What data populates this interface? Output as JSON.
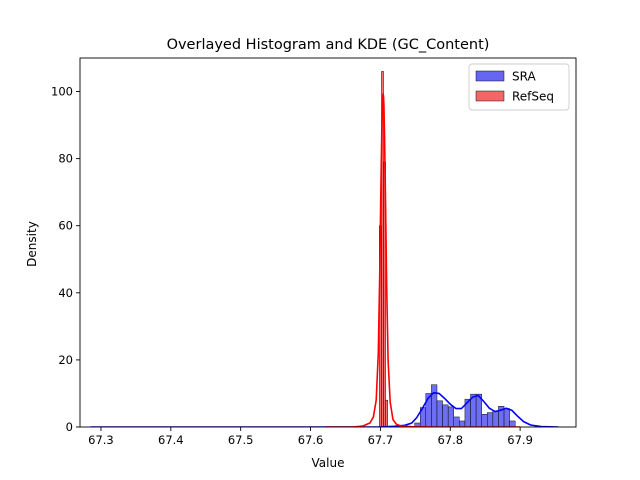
{
  "chart_data": {
    "type": "histogram",
    "title": "Overlayed Histogram and KDE (GC_Content)",
    "xlabel": "Value",
    "ylabel": "Density",
    "xlim": [
      67.27,
      67.98
    ],
    "ylim": [
      0,
      110
    ],
    "xticks": [
      "67.3",
      "67.4",
      "67.5",
      "67.6",
      "67.7",
      "67.8",
      "67.9"
    ],
    "yticks": [
      "0",
      "20",
      "40",
      "60",
      "80",
      "100"
    ],
    "grid": false,
    "legend_position": "top-right",
    "series": [
      {
        "name": "SRA",
        "color": "#0000ff",
        "fill": "#6666f2",
        "bins": [
          {
            "x0": 67.749,
            "x1": 67.757,
            "y": 1.2
          },
          {
            "x0": 67.757,
            "x1": 67.765,
            "y": 5.8
          },
          {
            "x0": 67.765,
            "x1": 67.773,
            "y": 10.0
          },
          {
            "x0": 67.773,
            "x1": 67.781,
            "y": 12.6
          },
          {
            "x0": 67.781,
            "x1": 67.789,
            "y": 7.8
          },
          {
            "x0": 67.789,
            "x1": 67.797,
            "y": 6.6
          },
          {
            "x0": 67.797,
            "x1": 67.805,
            "y": 6.0
          },
          {
            "x0": 67.805,
            "x1": 67.813,
            "y": 3.0
          },
          {
            "x0": 67.813,
            "x1": 67.821,
            "y": 1.8
          },
          {
            "x0": 67.821,
            "x1": 67.829,
            "y": 8.3
          },
          {
            "x0": 67.829,
            "x1": 67.837,
            "y": 9.8
          },
          {
            "x0": 67.837,
            "x1": 67.845,
            "y": 9.8
          },
          {
            "x0": 67.845,
            "x1": 67.853,
            "y": 3.8
          },
          {
            "x0": 67.853,
            "x1": 67.861,
            "y": 4.3
          },
          {
            "x0": 67.861,
            "x1": 67.869,
            "y": 4.8
          },
          {
            "x0": 67.869,
            "x1": 67.877,
            "y": 6.2
          },
          {
            "x0": 67.877,
            "x1": 67.885,
            "y": 5.5
          },
          {
            "x0": 67.885,
            "x1": 67.893,
            "y": 1.8
          }
        ],
        "kde_x": [
          67.285,
          67.6,
          67.7,
          67.72,
          67.735,
          67.745,
          67.752,
          67.76,
          67.768,
          67.776,
          67.784,
          67.792,
          67.8,
          67.808,
          67.816,
          67.824,
          67.832,
          67.84,
          67.848,
          67.856,
          67.864,
          67.872,
          67.88,
          67.888,
          67.896,
          67.905,
          67.915,
          67.93,
          67.955
        ],
        "kde_y": [
          0,
          0,
          0,
          0.2,
          0.5,
          1.2,
          2.8,
          5.5,
          8.5,
          10.2,
          10.0,
          8.5,
          6.8,
          5.5,
          5.5,
          7.2,
          8.9,
          9.4,
          7.6,
          5.6,
          4.6,
          5.0,
          5.6,
          5.0,
          3.3,
          1.6,
          0.6,
          0.15,
          0
        ]
      },
      {
        "name": "RefSeq",
        "color": "#ff0000",
        "fill": "#f26666",
        "bins": [
          {
            "x0": 67.6985,
            "x1": 67.7015,
            "y": 60.0
          },
          {
            "x0": 67.7015,
            "x1": 67.7045,
            "y": 106.0
          },
          {
            "x0": 67.7045,
            "x1": 67.7075,
            "y": 79.0
          },
          {
            "x0": 67.7075,
            "x1": 67.7105,
            "y": 8.0
          }
        ],
        "kde_x": [
          67.62,
          67.66,
          67.675,
          67.685,
          67.69,
          67.694,
          67.697,
          67.699,
          67.7005,
          67.702,
          67.703,
          67.7035,
          67.704,
          67.7045,
          67.705,
          67.706,
          67.7075,
          67.709,
          67.711,
          67.714,
          67.718,
          67.723,
          67.73,
          67.745,
          67.78,
          67.9
        ],
        "kde_y": [
          0,
          0,
          0.3,
          1.2,
          3.0,
          8.0,
          22.0,
          45.0,
          68.0,
          88.0,
          96.5,
          98.8,
          99.3,
          98.5,
          96.0,
          86.0,
          65.0,
          42.0,
          20.0,
          7.5,
          2.2,
          0.8,
          0.3,
          0.1,
          0,
          0
        ]
      }
    ]
  }
}
